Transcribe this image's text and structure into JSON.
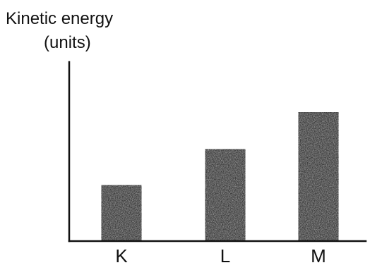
{
  "chart_data": {
    "type": "bar",
    "categories": [
      "K",
      "L",
      "M"
    ],
    "values": [
      3.9,
      6.4,
      9.0
    ],
    "title": "",
    "xlabel": "",
    "ylabel": [
      "Kinetic energy",
      "(units)"
    ],
    "ylim": [
      0,
      12.5
    ],
    "grid": false,
    "legend": "none",
    "bar_color": "#3a3a3a",
    "axis_color": "#111111"
  }
}
